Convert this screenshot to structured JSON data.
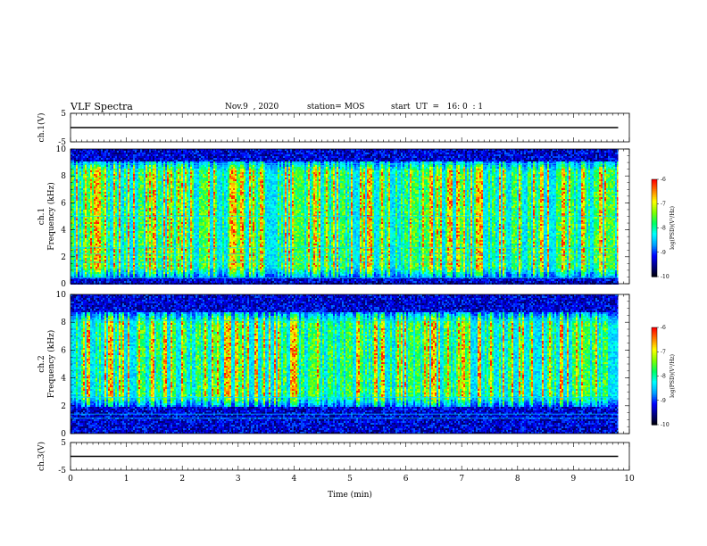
{
  "header": {
    "title": "VLF Spectra",
    "date": "Nov.9  , 2020",
    "station": "station= MOS",
    "start": "start  UT  =   16: 0  : 1"
  },
  "colors": {
    "background": "#ffffff",
    "axis": "#000000",
    "spectrogram_colormap": [
      "#000000",
      "#000080",
      "#0000ff",
      "#00a0ff",
      "#00ffff",
      "#00ff60",
      "#80ff00",
      "#ffff00",
      "#ff8000",
      "#ff0000",
      "#ffffff"
    ]
  },
  "chart_data": [
    {
      "type": "line",
      "name": "ch1-waveform",
      "ylabel": "ch.1(V)",
      "ytick_labels": [
        "5",
        "-5"
      ],
      "ylim": [
        -5,
        5
      ],
      "x": [
        0,
        9.8
      ],
      "y": [
        0,
        0
      ]
    },
    {
      "type": "heatmap",
      "name": "ch1-spectrogram",
      "ylabel_line1": "ch.1",
      "ylabel_line2": "Frequency  (kHz)",
      "ytick_labels": [
        "0",
        "2",
        "4",
        "6",
        "8",
        "10"
      ],
      "ylim": [
        0,
        10
      ],
      "xlim": [
        0,
        10
      ],
      "data_end_min": 9.8,
      "band_ranges_khz": [
        [
          0.5,
          9.2
        ]
      ],
      "noise_lines_khz": [
        0.45,
        1.6,
        2.2,
        2.7,
        5.0,
        8.9
      ],
      "colorbar": {
        "label": "log(PSD)(V²/Hz)",
        "tick_labels": [
          "-6",
          "-7",
          "-8",
          "-9",
          "-10"
        ],
        "range": [
          -10,
          -6
        ]
      }
    },
    {
      "type": "heatmap",
      "name": "ch2-spectrogram",
      "ylabel_line1": "ch.2",
      "ylabel_line2": "Frequency  (kHz)",
      "ytick_labels": [
        "0",
        "2",
        "4",
        "6",
        "8",
        "10"
      ],
      "ylim": [
        0,
        10
      ],
      "xlim": [
        0,
        10
      ],
      "data_end_min": 9.8,
      "band_ranges_khz": [
        [
          2.0,
          8.8
        ]
      ],
      "noise_lines_khz": [
        1.1,
        1.4,
        2.6,
        8.1
      ],
      "colorbar": {
        "label": "log(PSD)(V²/Hz)",
        "tick_labels": [
          "-6",
          "-7",
          "-8",
          "-9",
          "-10"
        ],
        "range": [
          -10,
          -6
        ]
      }
    },
    {
      "type": "line",
      "name": "ch3-waveform",
      "ylabel": "ch.3(V)",
      "ytick_labels": [
        "5",
        "-5"
      ],
      "ylim": [
        -5,
        5
      ],
      "x": [
        0,
        9.8
      ],
      "y": [
        0,
        0
      ]
    }
  ],
  "xaxis": {
    "label": "Time  (min)",
    "tick_labels": [
      "0",
      "1",
      "2",
      "3",
      "4",
      "5",
      "6",
      "7",
      "8",
      "9",
      "10"
    ],
    "xlim": [
      0,
      10
    ]
  }
}
